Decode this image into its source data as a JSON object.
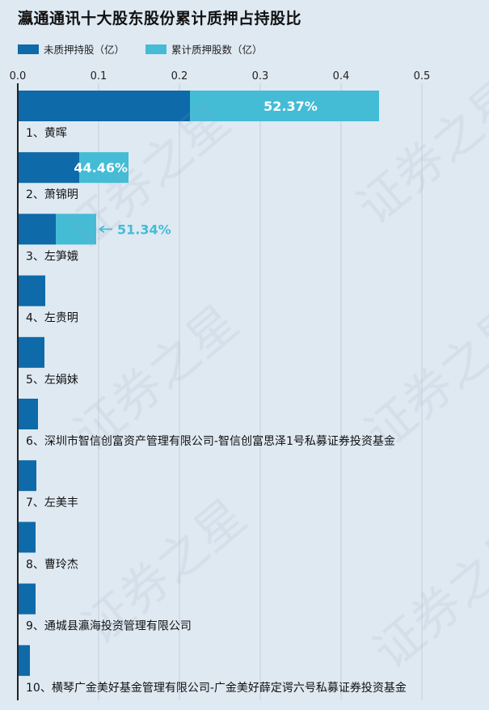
{
  "title": "瀛通通讯十大股东股份累计质押占持股比",
  "legend": {
    "unpledged": "未质押持股（亿）",
    "pledged": "累计质押股数（亿）"
  },
  "colors": {
    "unpledged": "#0e6aa8",
    "pledged": "#44bcd6",
    "background": "#dfe9f2",
    "axis": "#222222",
    "grid": "#c4cfdb",
    "label_on_bar": "#ffffff",
    "label_outside": "#44bcd6"
  },
  "watermark": "证券之星",
  "chart_data": {
    "type": "bar",
    "orientation": "horizontal",
    "stacked": true,
    "xlim": [
      0,
      0.5
    ],
    "xticks": [
      "0.0",
      "0.1",
      "0.2",
      "0.3",
      "0.4",
      "0.5"
    ],
    "categories": [
      "1、黄晖",
      "2、萧锦明",
      "3、左笋娥",
      "4、左贵明",
      "5、左娟妹",
      "6、深圳市智信创富资产管理有限公司-智信创富思泽1号私募证券投资基金",
      "7、左美丰",
      "8、曹玲杰",
      "9、通城县瀛海投资管理有限公司",
      "10、横琴广金美好基金管理有限公司-广金美好薛定谔六号私募证券投资基金"
    ],
    "series": [
      {
        "name": "未质押持股（亿）",
        "values": [
          0.213,
          0.076,
          0.047,
          0.034,
          0.033,
          0.025,
          0.023,
          0.022,
          0.022,
          0.015
        ]
      },
      {
        "name": "累计质押股数（亿）",
        "values": [
          0.234,
          0.061,
          0.05,
          0,
          0,
          0,
          0,
          0,
          0,
          0
        ]
      }
    ],
    "pledge_ratio_labels": [
      "52.37%",
      "44.46%",
      "51.34%",
      "",
      "",
      "",
      "",
      "",
      "",
      ""
    ],
    "grid": true,
    "legend_position": "top-left"
  }
}
